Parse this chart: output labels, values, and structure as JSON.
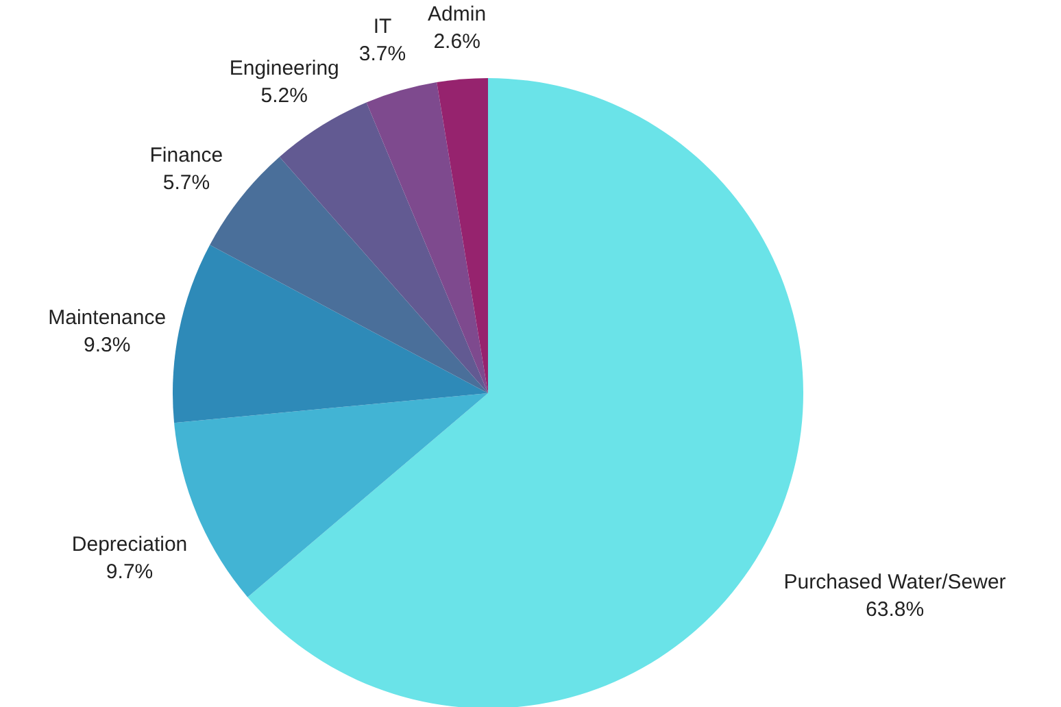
{
  "chart_data": {
    "type": "pie",
    "categories": [
      "Purchased Water/Sewer",
      "Depreciation",
      "Maintenance",
      "Finance",
      "Engineering",
      "IT",
      "Admin"
    ],
    "values": [
      63.8,
      9.7,
      9.3,
      5.7,
      5.2,
      3.7,
      2.6
    ],
    "value_labels": [
      "63.8%",
      "9.7%",
      "9.3%",
      "5.7%",
      "5.2%",
      "3.7%",
      "2.6%"
    ],
    "colors": [
      "#6ae3e8",
      "#42b4d4",
      "#2e8ab8",
      "#4a6f9a",
      "#625a92",
      "#7e4a8e",
      "#96236e"
    ]
  }
}
